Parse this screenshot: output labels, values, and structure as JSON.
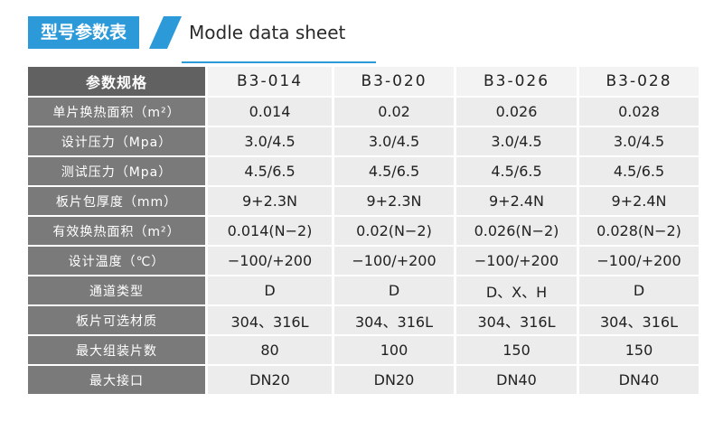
{
  "header": {
    "title_cn": "型号参数表",
    "title_en": "Modle data sheet"
  },
  "colors": {
    "accent": "#2c9ad8",
    "label_header_bg": "#616161",
    "label_bg": "#7a7a7a",
    "cell_bg": "#ececec"
  },
  "table": {
    "corner_label": "参数规格",
    "models": [
      "B3-014",
      "B3-020",
      "B3-026",
      "B3-028"
    ],
    "rows": [
      {
        "label": "单片换热面积（m²）",
        "values": [
          "0.014",
          "0.02",
          "0.026",
          "0.028"
        ]
      },
      {
        "label": "设计压力（Mpa）",
        "values": [
          "3.0/4.5",
          "3.0/4.5",
          "3.0/4.5",
          "3.0/4.5"
        ]
      },
      {
        "label": "测试压力（Mpa）",
        "values": [
          "4.5/6.5",
          "4.5/6.5",
          "4.5/6.5",
          "4.5/6.5"
        ]
      },
      {
        "label": "板片包厚度（mm）",
        "values": [
          "9+2.3N",
          "9+2.3N",
          "9+2.4N",
          "9+2.4N"
        ]
      },
      {
        "label": "有效换热面积（m²）",
        "values": [
          "0.014(N−2)",
          "0.02(N−2)",
          "0.026(N−2)",
          "0.028(N−2)"
        ]
      },
      {
        "label": "设计温度（℃）",
        "values": [
          "−100/+200",
          "−100/+200",
          "−100/+200",
          "−100/+200"
        ]
      },
      {
        "label": "通道类型",
        "values": [
          "D",
          "D",
          "D、X、H",
          "D"
        ]
      },
      {
        "label": "板片可选材质",
        "values": [
          "304、316L",
          "304、316L",
          "304、316L",
          "304、316L"
        ]
      },
      {
        "label": "最大组装片数",
        "values": [
          "80",
          "100",
          "150",
          "150"
        ]
      },
      {
        "label": "最大接口",
        "values": [
          "DN20",
          "DN20",
          "DN40",
          "DN40"
        ]
      }
    ]
  }
}
